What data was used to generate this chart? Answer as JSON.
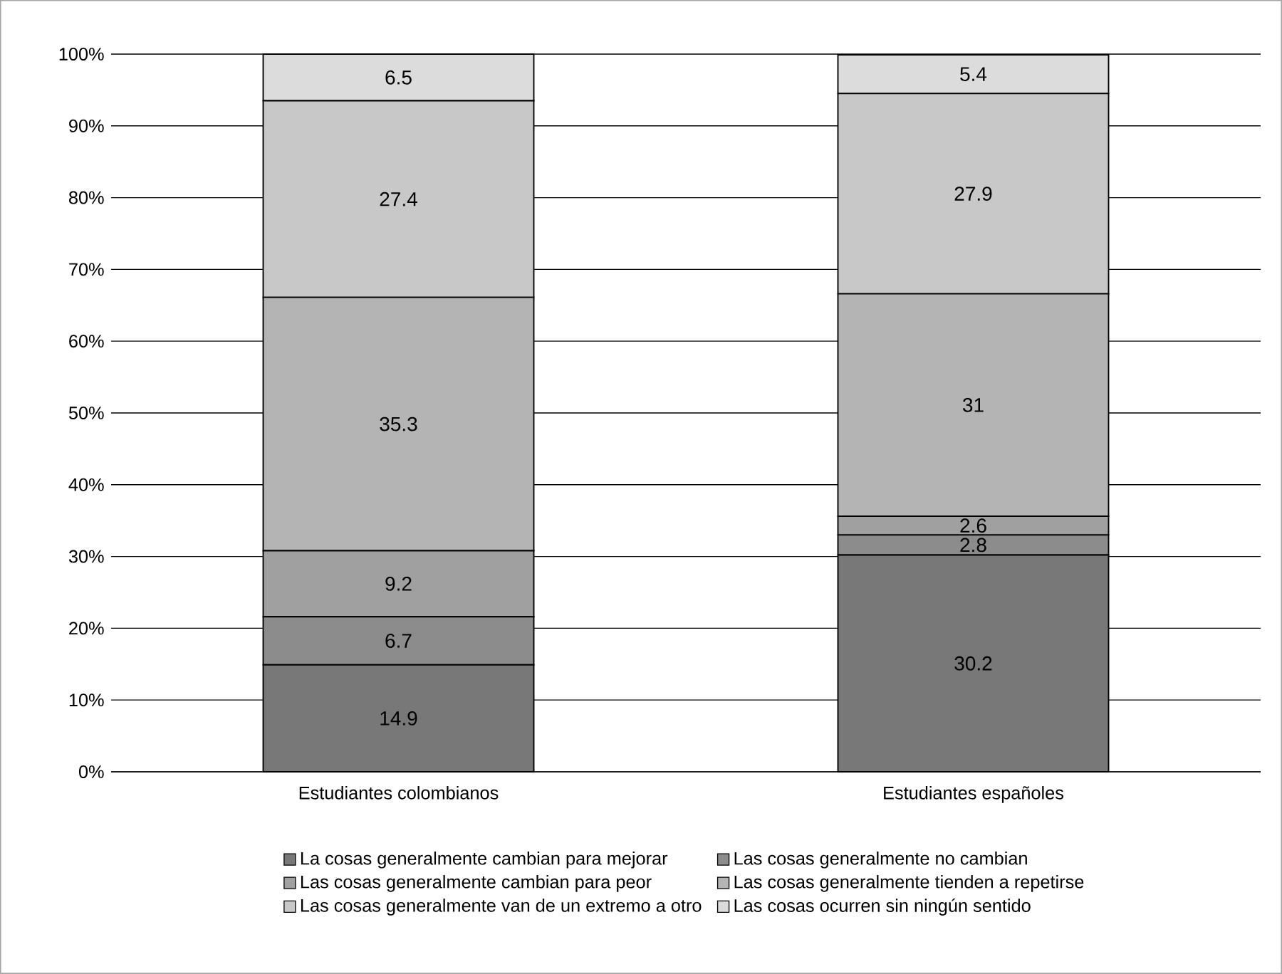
{
  "chart_data": {
    "type": "bar",
    "stacked": true,
    "categories": [
      "Estudiantes colombianos",
      "Estudiantes españoles"
    ],
    "series": [
      {
        "name": "La cosas generalmente cambian para mejorar",
        "color": "#787878",
        "values": [
          14.9,
          30.2
        ]
      },
      {
        "name": "Las cosas generalmente no cambian",
        "color": "#8c8c8c",
        "values": [
          6.7,
          2.8
        ]
      },
      {
        "name": "Las cosas generalmente cambian para peor",
        "color": "#a0a0a0",
        "values": [
          9.2,
          2.6
        ]
      },
      {
        "name": "Las cosas generalmente tienden a repetirse",
        "color": "#b4b4b4",
        "values": [
          35.3,
          31
        ]
      },
      {
        "name": "Las cosas generalmente van de un extremo a otro",
        "color": "#c8c8c8",
        "values": [
          27.4,
          27.9
        ]
      },
      {
        "name": "Las cosas ocurren sin ningún sentido",
        "color": "#dcdcdc",
        "values": [
          6.5,
          5.4
        ]
      }
    ],
    "ylim": [
      0,
      100
    ],
    "yticks": [
      {
        "value": 0,
        "label": "0%"
      },
      {
        "value": 10,
        "label": "10%"
      },
      {
        "value": 20,
        "label": "20%"
      },
      {
        "value": 30,
        "label": "30%"
      },
      {
        "value": 40,
        "label": "40%"
      },
      {
        "value": 50,
        "label": "50%"
      },
      {
        "value": 60,
        "label": "60%"
      },
      {
        "value": 70,
        "label": "70%"
      },
      {
        "value": 80,
        "label": "80%"
      },
      {
        "value": 90,
        "label": "90%"
      },
      {
        "value": 100,
        "label": "100%"
      }
    ],
    "grid": "y",
    "legend": "bottom",
    "data_labels": true
  }
}
